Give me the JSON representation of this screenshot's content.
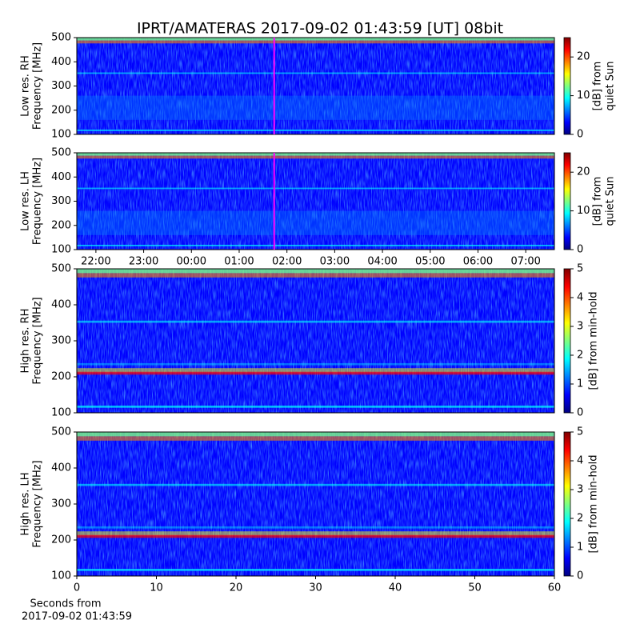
{
  "chart_data": [
    {
      "type": "heatmap",
      "title": "IPRT/AMATERAS 2017-09-02 01:43:59 [UT]   08bit",
      "ylabel": [
        "Low res. RH",
        "Frequency [MHz]"
      ],
      "ylim": [
        100,
        500
      ],
      "yticks": [
        100,
        200,
        300,
        400,
        500
      ],
      "xlim": [
        21.6,
        31.6
      ],
      "marker_x": 25.733,
      "marker_color": "#ff00ff",
      "colorbar_label": [
        "[dB] from",
        "quiet Sun"
      ],
      "clim": [
        0,
        25
      ],
      "cticks": [
        0,
        10,
        20
      ],
      "colormap": [
        "#00007f",
        "#0000ff",
        "#007fff",
        "#00ffff",
        "#7fff7f",
        "#ffff00",
        "#ff7f00",
        "#ff0000",
        "#7f0000"
      ]
    },
    {
      "type": "heatmap",
      "ylabel": [
        "Low res. LH",
        "Frequency [MHz]"
      ],
      "ylim": [
        100,
        500
      ],
      "yticks": [
        100,
        200,
        300,
        400,
        500
      ],
      "xlim": [
        21.6,
        31.6
      ],
      "xticks": [
        {
          "value": 22,
          "label": "22:00"
        },
        {
          "value": 23,
          "label": "23:00"
        },
        {
          "value": 24,
          "label": "00:00"
        },
        {
          "value": 25,
          "label": "01:00"
        },
        {
          "value": 26,
          "label": "02:00"
        },
        {
          "value": 27,
          "label": "03:00"
        },
        {
          "value": 28,
          "label": "04:00"
        },
        {
          "value": 29,
          "label": "05:00"
        },
        {
          "value": 30,
          "label": "06:00"
        },
        {
          "value": 31,
          "label": "07:00"
        }
      ],
      "marker_x": 25.733,
      "marker_color": "#ff00ff",
      "colorbar_label": [
        "[dB] from",
        "quiet Sun"
      ],
      "clim": [
        0,
        25
      ],
      "cticks": [
        0,
        10,
        20
      ],
      "colormap": [
        "#00007f",
        "#0000ff",
        "#007fff",
        "#00ffff",
        "#7fff7f",
        "#ffff00",
        "#ff7f00",
        "#ff0000",
        "#7f0000"
      ]
    },
    {
      "type": "heatmap",
      "ylabel": [
        "High res. RH",
        "Frequency [MHz]"
      ],
      "ylim": [
        100,
        500
      ],
      "yticks": [
        100,
        200,
        300,
        400,
        500
      ],
      "xlim": [
        0,
        60
      ],
      "colorbar_label": [
        "[dB] from min-hold"
      ],
      "clim": [
        0,
        5
      ],
      "cticks": [
        0,
        1,
        2,
        3,
        4,
        5
      ],
      "colormap": [
        "#00007f",
        "#0000ff",
        "#007fff",
        "#00ffff",
        "#7fff7f",
        "#ffff00",
        "#ff7f00",
        "#ff0000",
        "#7f0000"
      ]
    },
    {
      "type": "heatmap",
      "ylabel": [
        "High res. LH",
        "Frequency [MHz]"
      ],
      "ylim": [
        100,
        500
      ],
      "yticks": [
        100,
        200,
        300,
        400,
        500
      ],
      "xlim": [
        0,
        60
      ],
      "xticks": [
        0,
        10,
        20,
        30,
        40,
        50,
        60
      ],
      "xlabel": [
        "Seconds from",
        "2017-09-02 01:43:59"
      ],
      "colorbar_label": [
        "[dB] from min-hold"
      ],
      "clim": [
        0,
        5
      ],
      "cticks": [
        0,
        1,
        2,
        3,
        4,
        5
      ],
      "colormap": [
        "#00007f",
        "#0000ff",
        "#007fff",
        "#00ffff",
        "#7fff7f",
        "#ffff00",
        "#ff7f00",
        "#ff0000",
        "#7f0000"
      ]
    }
  ]
}
